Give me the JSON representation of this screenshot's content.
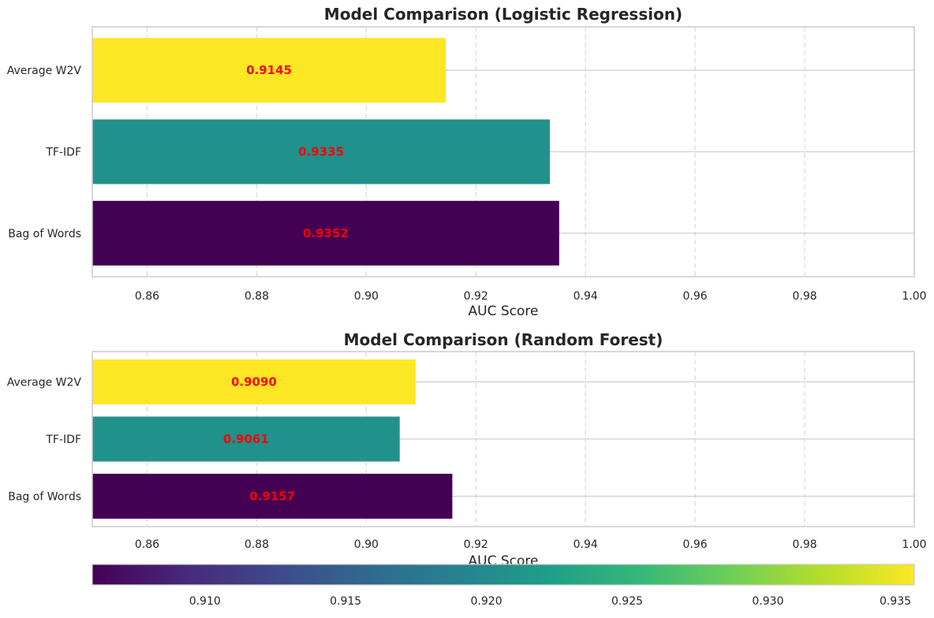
{
  "chart_data": [
    {
      "type": "bar",
      "orientation": "horizontal",
      "title": "Model Comparison (Logistic Regression)",
      "xlabel": "AUC Score",
      "ylabel": "",
      "categories": [
        "Average W2V",
        "TF-IDF",
        "Bag of Words"
      ],
      "values": [
        0.9145,
        0.9335,
        0.9352
      ],
      "value_labels": [
        "0.9145",
        "0.9335",
        "0.9352"
      ],
      "colors": [
        "#fde725",
        "#21918c",
        "#440154"
      ],
      "xlim": [
        0.85,
        1.0
      ],
      "xticks": [
        0.86,
        0.88,
        0.9,
        0.92,
        0.94,
        0.96,
        0.98,
        1.0
      ],
      "xtick_labels": [
        "0.86",
        "0.88",
        "0.90",
        "0.92",
        "0.94",
        "0.96",
        "0.98",
        "1.00"
      ],
      "grid": "x-dashed, y-solid"
    },
    {
      "type": "bar",
      "orientation": "horizontal",
      "title": "Model Comparison (Random Forest)",
      "xlabel": "AUC Score",
      "ylabel": "",
      "categories": [
        "Average W2V",
        "TF-IDF",
        "Bag of Words"
      ],
      "values": [
        0.909,
        0.9061,
        0.9157
      ],
      "value_labels": [
        "0.9090",
        "0.9061",
        "0.9157"
      ],
      "colors": [
        "#fde725",
        "#21918c",
        "#440154"
      ],
      "xlim": [
        0.85,
        1.0
      ],
      "xticks": [
        0.86,
        0.88,
        0.9,
        0.92,
        0.94,
        0.96,
        0.98,
        1.0
      ],
      "xtick_labels": [
        "0.86",
        "0.88",
        "0.90",
        "0.92",
        "0.94",
        "0.96",
        "0.98",
        "1.00"
      ],
      "grid": "x-dashed, y-solid"
    }
  ],
  "colorbar": {
    "colormap": "viridis",
    "range": [
      0.906,
      0.9352
    ],
    "ticks": [
      0.91,
      0.915,
      0.92,
      0.925,
      0.93,
      0.935
    ],
    "tick_labels": [
      "0.910",
      "0.915",
      "0.920",
      "0.925",
      "0.930",
      "0.935"
    ],
    "stops": [
      "#440154",
      "#482878",
      "#3e4989",
      "#31688e",
      "#26828e",
      "#1f9e89",
      "#35b779",
      "#6ece58",
      "#b5de2b",
      "#fde725"
    ]
  }
}
